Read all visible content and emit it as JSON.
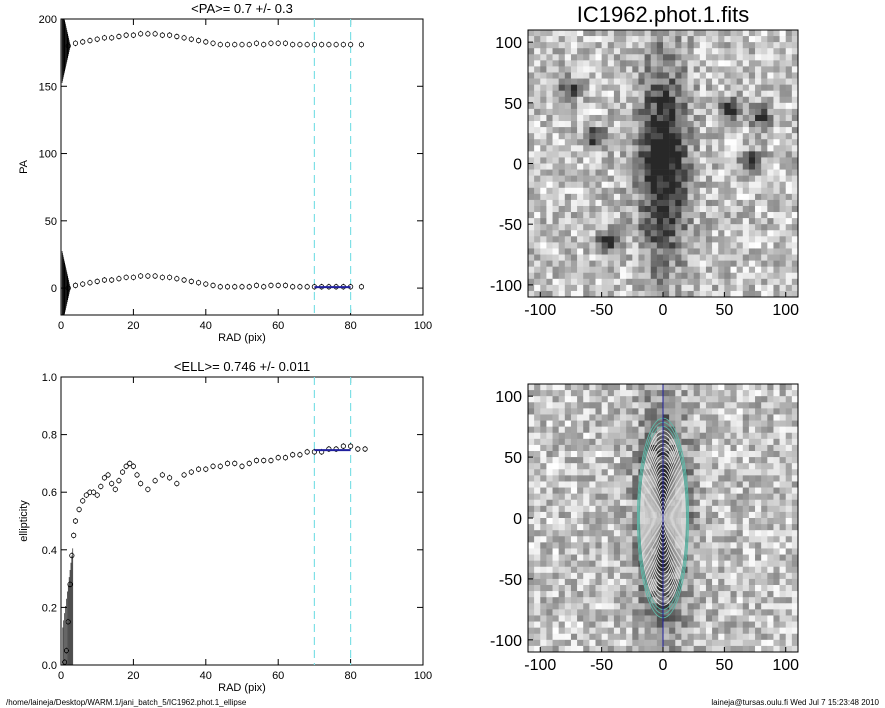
{
  "footer": {
    "path": "/home/laineja/Desktop/WARM.1/jani_batch_5/IC1962.phot.1_ellipse",
    "user_date": "laineja@tursas.oulu.fi  Wed Jul  7 15:23:48 2010"
  },
  "colors": {
    "axis": "#000000",
    "cyan_marker": "#7fe0e6",
    "fit_line": "#1f1f9e",
    "contour": "#e6e6e6",
    "contour_outer": "#5fb8a8"
  },
  "chart_data": [
    {
      "type": "scatter",
      "title": "<PA>=   0.7 +/-   0.3",
      "xlabel": "RAD (pix)",
      "ylabel": "PA",
      "xlim": [
        0,
        100
      ],
      "ylim": [
        -20,
        200
      ],
      "xticks": [
        "0",
        "20",
        "40",
        "60",
        "80",
        "100"
      ],
      "yticks": [
        "0",
        "50",
        "100",
        "150",
        "200"
      ],
      "vlines": [
        70,
        80
      ],
      "series": [
        {
          "x": [
            2,
            4,
            6,
            8,
            10,
            12,
            14,
            16,
            18,
            20,
            22,
            24,
            26,
            28,
            30,
            32,
            34,
            36,
            38,
            40,
            42,
            44,
            46,
            48,
            50,
            52,
            54,
            56,
            58,
            60,
            62,
            64,
            66,
            68,
            70,
            72,
            74,
            76,
            78,
            80,
            83
          ],
          "y": [
            180,
            182,
            183,
            184,
            185,
            186,
            186,
            187,
            188,
            188,
            189,
            189,
            189,
            188,
            188,
            187,
            186,
            185,
            184,
            183,
            182,
            181,
            181,
            181,
            181,
            181,
            182,
            181,
            182,
            182,
            182,
            181,
            181,
            181,
            181,
            181,
            181,
            181,
            181,
            181,
            181
          ]
        },
        {
          "x": [
            2,
            4,
            6,
            8,
            10,
            12,
            14,
            16,
            18,
            20,
            22,
            24,
            26,
            28,
            30,
            32,
            34,
            36,
            38,
            40,
            42,
            44,
            46,
            48,
            50,
            52,
            54,
            56,
            58,
            60,
            62,
            64,
            66,
            68,
            70,
            72,
            74,
            76,
            78,
            80,
            83
          ],
          "y": [
            0,
            2,
            3,
            4,
            5,
            6,
            6,
            7,
            8,
            8,
            9,
            9,
            9,
            8,
            8,
            7,
            6,
            5,
            4,
            3,
            2,
            1,
            1,
            1,
            1,
            1,
            2,
            1,
            2,
            2,
            2,
            1,
            1,
            1,
            1,
            1,
            1,
            1,
            1,
            1,
            1
          ]
        }
      ],
      "fit": {
        "x": [
          70,
          80
        ],
        "y": [
          0.7,
          0.7
        ]
      }
    },
    {
      "type": "scatter",
      "title": "<ELL>= 0.746 +/-  0.011",
      "xlabel": "RAD (pix)",
      "ylabel": "ellipticity",
      "xlim": [
        0,
        100
      ],
      "ylim": [
        0,
        1
      ],
      "xticks": [
        "0",
        "20",
        "40",
        "60",
        "80",
        "100"
      ],
      "yticks": [
        "0.0",
        "0.2",
        "0.4",
        "0.6",
        "0.8",
        "1.0"
      ],
      "vlines": [
        70,
        80
      ],
      "series": [
        {
          "x": [
            1,
            1.5,
            2,
            2.5,
            3,
            3.5,
            4,
            5,
            6,
            7,
            8,
            9,
            10,
            11,
            12,
            13,
            14,
            15,
            16,
            17,
            18,
            19,
            20,
            21,
            22,
            24,
            26,
            28,
            30,
            32,
            34,
            36,
            38,
            40,
            42,
            44,
            46,
            48,
            50,
            52,
            54,
            56,
            58,
            60,
            62,
            64,
            66,
            68,
            70,
            72,
            74,
            76,
            78,
            80,
            82,
            84
          ],
          "y": [
            0.01,
            0.05,
            0.15,
            0.28,
            0.38,
            0.45,
            0.5,
            0.54,
            0.57,
            0.59,
            0.6,
            0.6,
            0.59,
            0.62,
            0.65,
            0.66,
            0.63,
            0.61,
            0.64,
            0.67,
            0.69,
            0.7,
            0.69,
            0.66,
            0.63,
            0.61,
            0.64,
            0.66,
            0.65,
            0.63,
            0.66,
            0.67,
            0.68,
            0.68,
            0.69,
            0.69,
            0.7,
            0.7,
            0.69,
            0.7,
            0.71,
            0.71,
            0.71,
            0.72,
            0.72,
            0.73,
            0.73,
            0.74,
            0.74,
            0.74,
            0.75,
            0.75,
            0.76,
            0.76,
            0.75,
            0.75
          ]
        }
      ],
      "fit": {
        "x": [
          70,
          80
        ],
        "y": [
          0.746,
          0.746
        ]
      }
    },
    {
      "type": "heatmap",
      "title": "IC1962.phot.1.fits",
      "xlim": [
        -110,
        110
      ],
      "ylim": [
        -110,
        110
      ],
      "xticks": [
        "-100",
        "-50",
        "0",
        "50",
        "100"
      ],
      "yticks": [
        "-100",
        "-50",
        "0",
        "50",
        "100"
      ],
      "galaxy": {
        "center": [
          0,
          0
        ],
        "sigma_x": 14,
        "sigma_y": 60
      },
      "sources": [
        {
          "x": -45,
          "y": -65
        },
        {
          "x": -55,
          "y": 22
        },
        {
          "x": 72,
          "y": 2
        },
        {
          "x": 80,
          "y": 40
        },
        {
          "x": -75,
          "y": 62
        },
        {
          "x": 55,
          "y": 45
        }
      ]
    },
    {
      "type": "heatmap",
      "title": "",
      "xlim": [
        -110,
        110
      ],
      "ylim": [
        -110,
        110
      ],
      "xticks": [
        "-100",
        "-50",
        "0",
        "50",
        "100"
      ],
      "yticks": [
        "-100",
        "-50",
        "0",
        "50",
        "100"
      ],
      "ellipses": {
        "count": 24,
        "max_semimajor": 82,
        "ellipticity": 0.746,
        "center": [
          0,
          0
        ]
      }
    }
  ]
}
